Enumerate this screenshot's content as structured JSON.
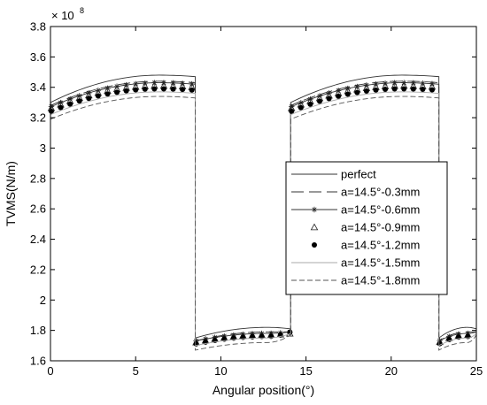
{
  "chart_data": {
    "type": "line",
    "title": "",
    "xlabel": "Angular position(°)",
    "ylabel": "TVMS(N/m)",
    "y_multiplier": "× 10",
    "y_multiplier_exp": "8",
    "xlim": [
      0,
      25
    ],
    "ylim": [
      1.6,
      3.8
    ],
    "xticks": [
      "0",
      "5",
      "10",
      "15",
      "20",
      "25"
    ],
    "yticks": [
      "1.6",
      "1.8",
      "2",
      "2.2",
      "2.4",
      "2.6",
      "2.8",
      "3",
      "3.2",
      "3.4",
      "3.6",
      "3.8"
    ],
    "grid": false,
    "legend_position": "center-right",
    "mesh_segments": [
      {
        "start": 0.0,
        "end": 8.5,
        "kind": "double"
      },
      {
        "start": 8.5,
        "end": 14.1,
        "kind": "single"
      },
      {
        "start": 14.1,
        "end": 22.8,
        "kind": "double"
      },
      {
        "start": 22.8,
        "end": 25.0,
        "kind": "single"
      }
    ],
    "series": [
      {
        "name": "perfect",
        "style": "solid-dark",
        "double_start": 3.3,
        "double_peak": 3.48,
        "double_end": 3.47,
        "single_start": 1.75,
        "single_peak": 1.82,
        "single_end": 1.81
      },
      {
        "name": "a=14.5°-0.3mm",
        "style": "long-dash",
        "double_start": 3.28,
        "double_peak": 3.44,
        "double_end": 3.43,
        "single_start": 1.73,
        "single_peak": 1.79,
        "single_end": 1.79
      },
      {
        "name": "a=14.5°-0.6mm",
        "style": "star",
        "double_start": 3.27,
        "double_peak": 3.43,
        "double_end": 3.42,
        "single_start": 1.73,
        "single_peak": 1.78,
        "single_end": 1.79
      },
      {
        "name": "a=14.5°-0.9mm",
        "style": "triangle",
        "double_start": 3.26,
        "double_peak": 3.41,
        "double_end": 3.4,
        "single_start": 1.72,
        "single_peak": 1.77,
        "single_end": 1.78
      },
      {
        "name": "a=14.5°-1.2mm",
        "style": "dot",
        "double_start": 3.24,
        "double_peak": 3.39,
        "double_end": 3.38,
        "single_start": 1.71,
        "single_peak": 1.76,
        "single_end": 1.79
      },
      {
        "name": "a=14.5°-1.5mm",
        "style": "solid-light",
        "double_start": 3.22,
        "double_peak": 3.37,
        "double_end": 3.36,
        "single_start": 1.7,
        "single_peak": 1.75,
        "single_end": 1.78
      },
      {
        "name": "a=14.5°-1.8mm",
        "style": "short-dash",
        "double_start": 3.19,
        "double_peak": 3.34,
        "double_end": 3.33,
        "single_start": 1.67,
        "single_peak": 1.72,
        "single_end": 1.77
      }
    ]
  }
}
